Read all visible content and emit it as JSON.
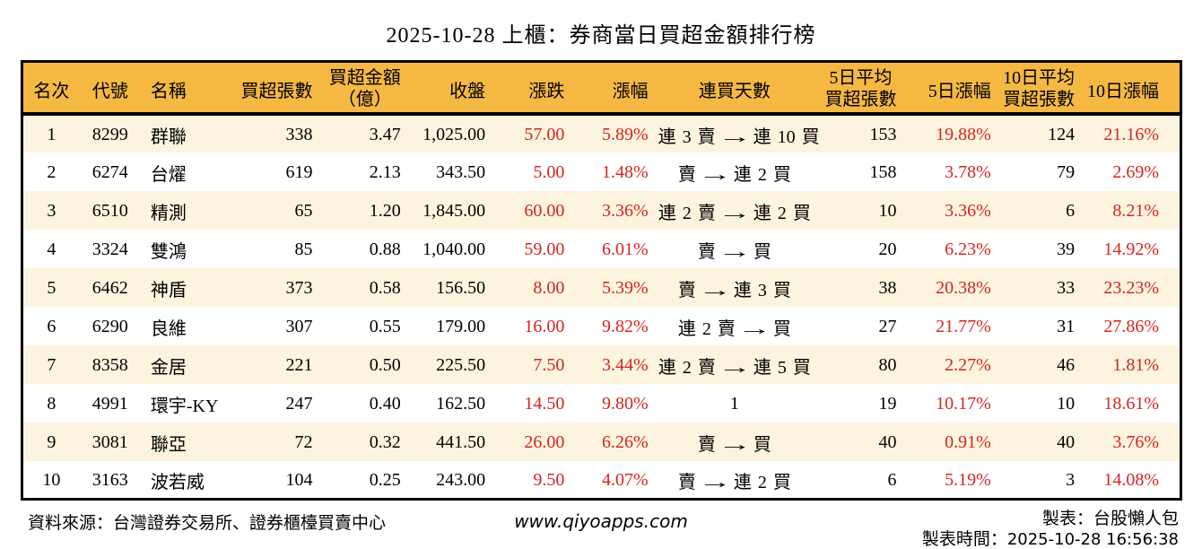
{
  "title": "2025-10-28 上櫃：券商當日買超金額排行榜",
  "colors": {
    "header_bg": "#F5B843",
    "stripe_bg": "#FCF4DE",
    "up_color": "#D42420",
    "border": "#000000"
  },
  "table": {
    "columns": [
      {
        "key": "rank",
        "label": "名次"
      },
      {
        "key": "code",
        "label": "代號"
      },
      {
        "key": "name",
        "label": "名稱"
      },
      {
        "key": "net_buy_lots",
        "label": "買超張數"
      },
      {
        "key": "net_buy_amount",
        "lines": [
          "買超金額",
          "（億）"
        ]
      },
      {
        "key": "close",
        "label": "收盤"
      },
      {
        "key": "change",
        "label": "漲跌"
      },
      {
        "key": "change_pct",
        "label": "漲幅"
      },
      {
        "key": "streak",
        "label": "連買天數"
      },
      {
        "key": "avg5_lots",
        "lines": [
          "5日平均",
          "買超張數"
        ]
      },
      {
        "key": "pct5",
        "label": "5日漲幅"
      },
      {
        "key": "avg10_lots",
        "lines": [
          "10日平均",
          "買超張數"
        ]
      },
      {
        "key": "pct10",
        "label": "10日漲幅"
      }
    ],
    "rows": [
      {
        "rank": "1",
        "code": "8299",
        "name": "群聯",
        "net_buy_lots": "338",
        "net_buy_amount": "3.47",
        "close": "1,025.00",
        "change": "57.00",
        "change_pct": "5.89%",
        "streak": "連 3 賣 → 連 10 買",
        "avg5_lots": "153",
        "pct5": "19.88%",
        "avg10_lots": "124",
        "pct10": "21.16%"
      },
      {
        "rank": "2",
        "code": "6274",
        "name": "台燿",
        "net_buy_lots": "619",
        "net_buy_amount": "2.13",
        "close": "343.50",
        "change": "5.00",
        "change_pct": "1.48%",
        "streak": "賣 → 連 2 買",
        "avg5_lots": "158",
        "pct5": "3.78%",
        "avg10_lots": "79",
        "pct10": "2.69%"
      },
      {
        "rank": "3",
        "code": "6510",
        "name": "精測",
        "net_buy_lots": "65",
        "net_buy_amount": "1.20",
        "close": "1,845.00",
        "change": "60.00",
        "change_pct": "3.36%",
        "streak": "連 2 賣 → 連 2 買",
        "avg5_lots": "10",
        "pct5": "3.36%",
        "avg10_lots": "6",
        "pct10": "8.21%"
      },
      {
        "rank": "4",
        "code": "3324",
        "name": "雙鴻",
        "net_buy_lots": "85",
        "net_buy_amount": "0.88",
        "close": "1,040.00",
        "change": "59.00",
        "change_pct": "6.01%",
        "streak": "賣 → 買",
        "avg5_lots": "20",
        "pct5": "6.23%",
        "avg10_lots": "39",
        "pct10": "14.92%"
      },
      {
        "rank": "5",
        "code": "6462",
        "name": "神盾",
        "net_buy_lots": "373",
        "net_buy_amount": "0.58",
        "close": "156.50",
        "change": "8.00",
        "change_pct": "5.39%",
        "streak": "賣 → 連 3 買",
        "avg5_lots": "38",
        "pct5": "20.38%",
        "avg10_lots": "33",
        "pct10": "23.23%"
      },
      {
        "rank": "6",
        "code": "6290",
        "name": "良維",
        "net_buy_lots": "307",
        "net_buy_amount": "0.55",
        "close": "179.00",
        "change": "16.00",
        "change_pct": "9.82%",
        "streak": "連 2 賣 → 買",
        "avg5_lots": "27",
        "pct5": "21.77%",
        "avg10_lots": "31",
        "pct10": "27.86%"
      },
      {
        "rank": "7",
        "code": "8358",
        "name": "金居",
        "net_buy_lots": "221",
        "net_buy_amount": "0.50",
        "close": "225.50",
        "change": "7.50",
        "change_pct": "3.44%",
        "streak": "連 2 賣 → 連 5 買",
        "avg5_lots": "80",
        "pct5": "2.27%",
        "avg10_lots": "46",
        "pct10": "1.81%"
      },
      {
        "rank": "8",
        "code": "4991",
        "name": "環宇-KY",
        "net_buy_lots": "247",
        "net_buy_amount": "0.40",
        "close": "162.50",
        "change": "14.50",
        "change_pct": "9.80%",
        "streak": "1",
        "avg5_lots": "19",
        "pct5": "10.17%",
        "avg10_lots": "10",
        "pct10": "18.61%"
      },
      {
        "rank": "9",
        "code": "3081",
        "name": "聯亞",
        "net_buy_lots": "72",
        "net_buy_amount": "0.32",
        "close": "441.50",
        "change": "26.00",
        "change_pct": "6.26%",
        "streak": "賣 → 買",
        "avg5_lots": "40",
        "pct5": "0.91%",
        "avg10_lots": "40",
        "pct10": "3.76%"
      },
      {
        "rank": "10",
        "code": "3163",
        "name": "波若威",
        "net_buy_lots": "104",
        "net_buy_amount": "0.25",
        "close": "243.00",
        "change": "9.50",
        "change_pct": "4.07%",
        "streak": "賣 → 連 2 買",
        "avg5_lots": "6",
        "pct5": "5.19%",
        "avg10_lots": "3",
        "pct10": "14.08%"
      }
    ]
  },
  "footer": {
    "source": "資料來源：台灣證券交易所、證券櫃檯買賣中心",
    "website": "www.qiyoapps.com",
    "made_by": "製表：台股懶人包",
    "made_time_label": "製表時間：",
    "made_time_value": "2025-10-28 16:56:38"
  }
}
